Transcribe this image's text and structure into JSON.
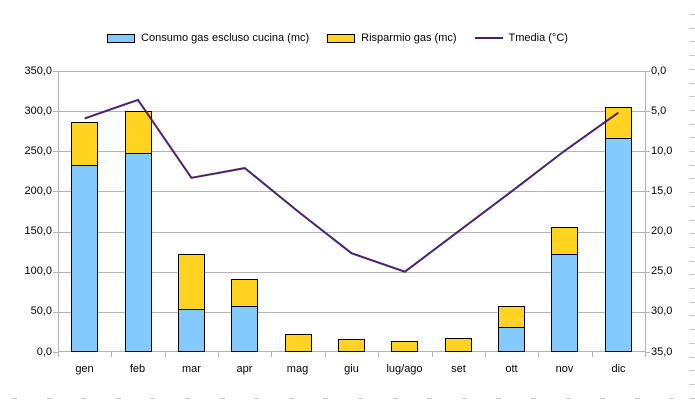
{
  "chart_data": {
    "type": "bar",
    "subtype": "stacked-bars-with-line-combo",
    "title": "",
    "categories": [
      "gen",
      "feb",
      "mar",
      "apr",
      "mag",
      "giu",
      "lug/ago",
      "set",
      "ott",
      "nov",
      "dic"
    ],
    "series": [
      {
        "name": "Consumo gas escluso cucina (mc)",
        "type": "bar",
        "stacked": true,
        "axis": "left",
        "color": "#83CAFF",
        "values": [
          233,
          248,
          53,
          57,
          0,
          0,
          0,
          0,
          31,
          122,
          266
        ]
      },
      {
        "name": "Risparmio gas (mc)",
        "type": "bar",
        "stacked": true,
        "axis": "left",
        "color": "#FFD320",
        "values": [
          53,
          52,
          69,
          34,
          22,
          16,
          14,
          17,
          26,
          34,
          39
        ]
      },
      {
        "name": "Tmedia (°C)",
        "type": "line",
        "axis": "right",
        "color": "#4B1F6F",
        "values": [
          5.9,
          3.6,
          13.3,
          12.1,
          17.5,
          22.7,
          25.0,
          20.0,
          15.0,
          9.9,
          5.2
        ]
      }
    ],
    "left_axis": {
      "min": 0,
      "max": 350,
      "step": 50,
      "labels": [
        "350,0",
        "300,0",
        "250,0",
        "200,0",
        "150,0",
        "100,0",
        "50,0",
        "0,0"
      ]
    },
    "right_axis": {
      "min": 0,
      "max": 35,
      "step": 5,
      "inverted": true,
      "labels": [
        "0,0",
        "5,0",
        "10,0",
        "15,0",
        "20,0",
        "25,0",
        "30,0",
        "35,0"
      ]
    },
    "grid": true,
    "legend_position": "top",
    "colors": {
      "background": "#ffffff",
      "grid": "#b3b3b3",
      "axis": "#b3b3b3",
      "bar_border": "#000000",
      "edge_ticks": "#c9c9c9"
    }
  }
}
